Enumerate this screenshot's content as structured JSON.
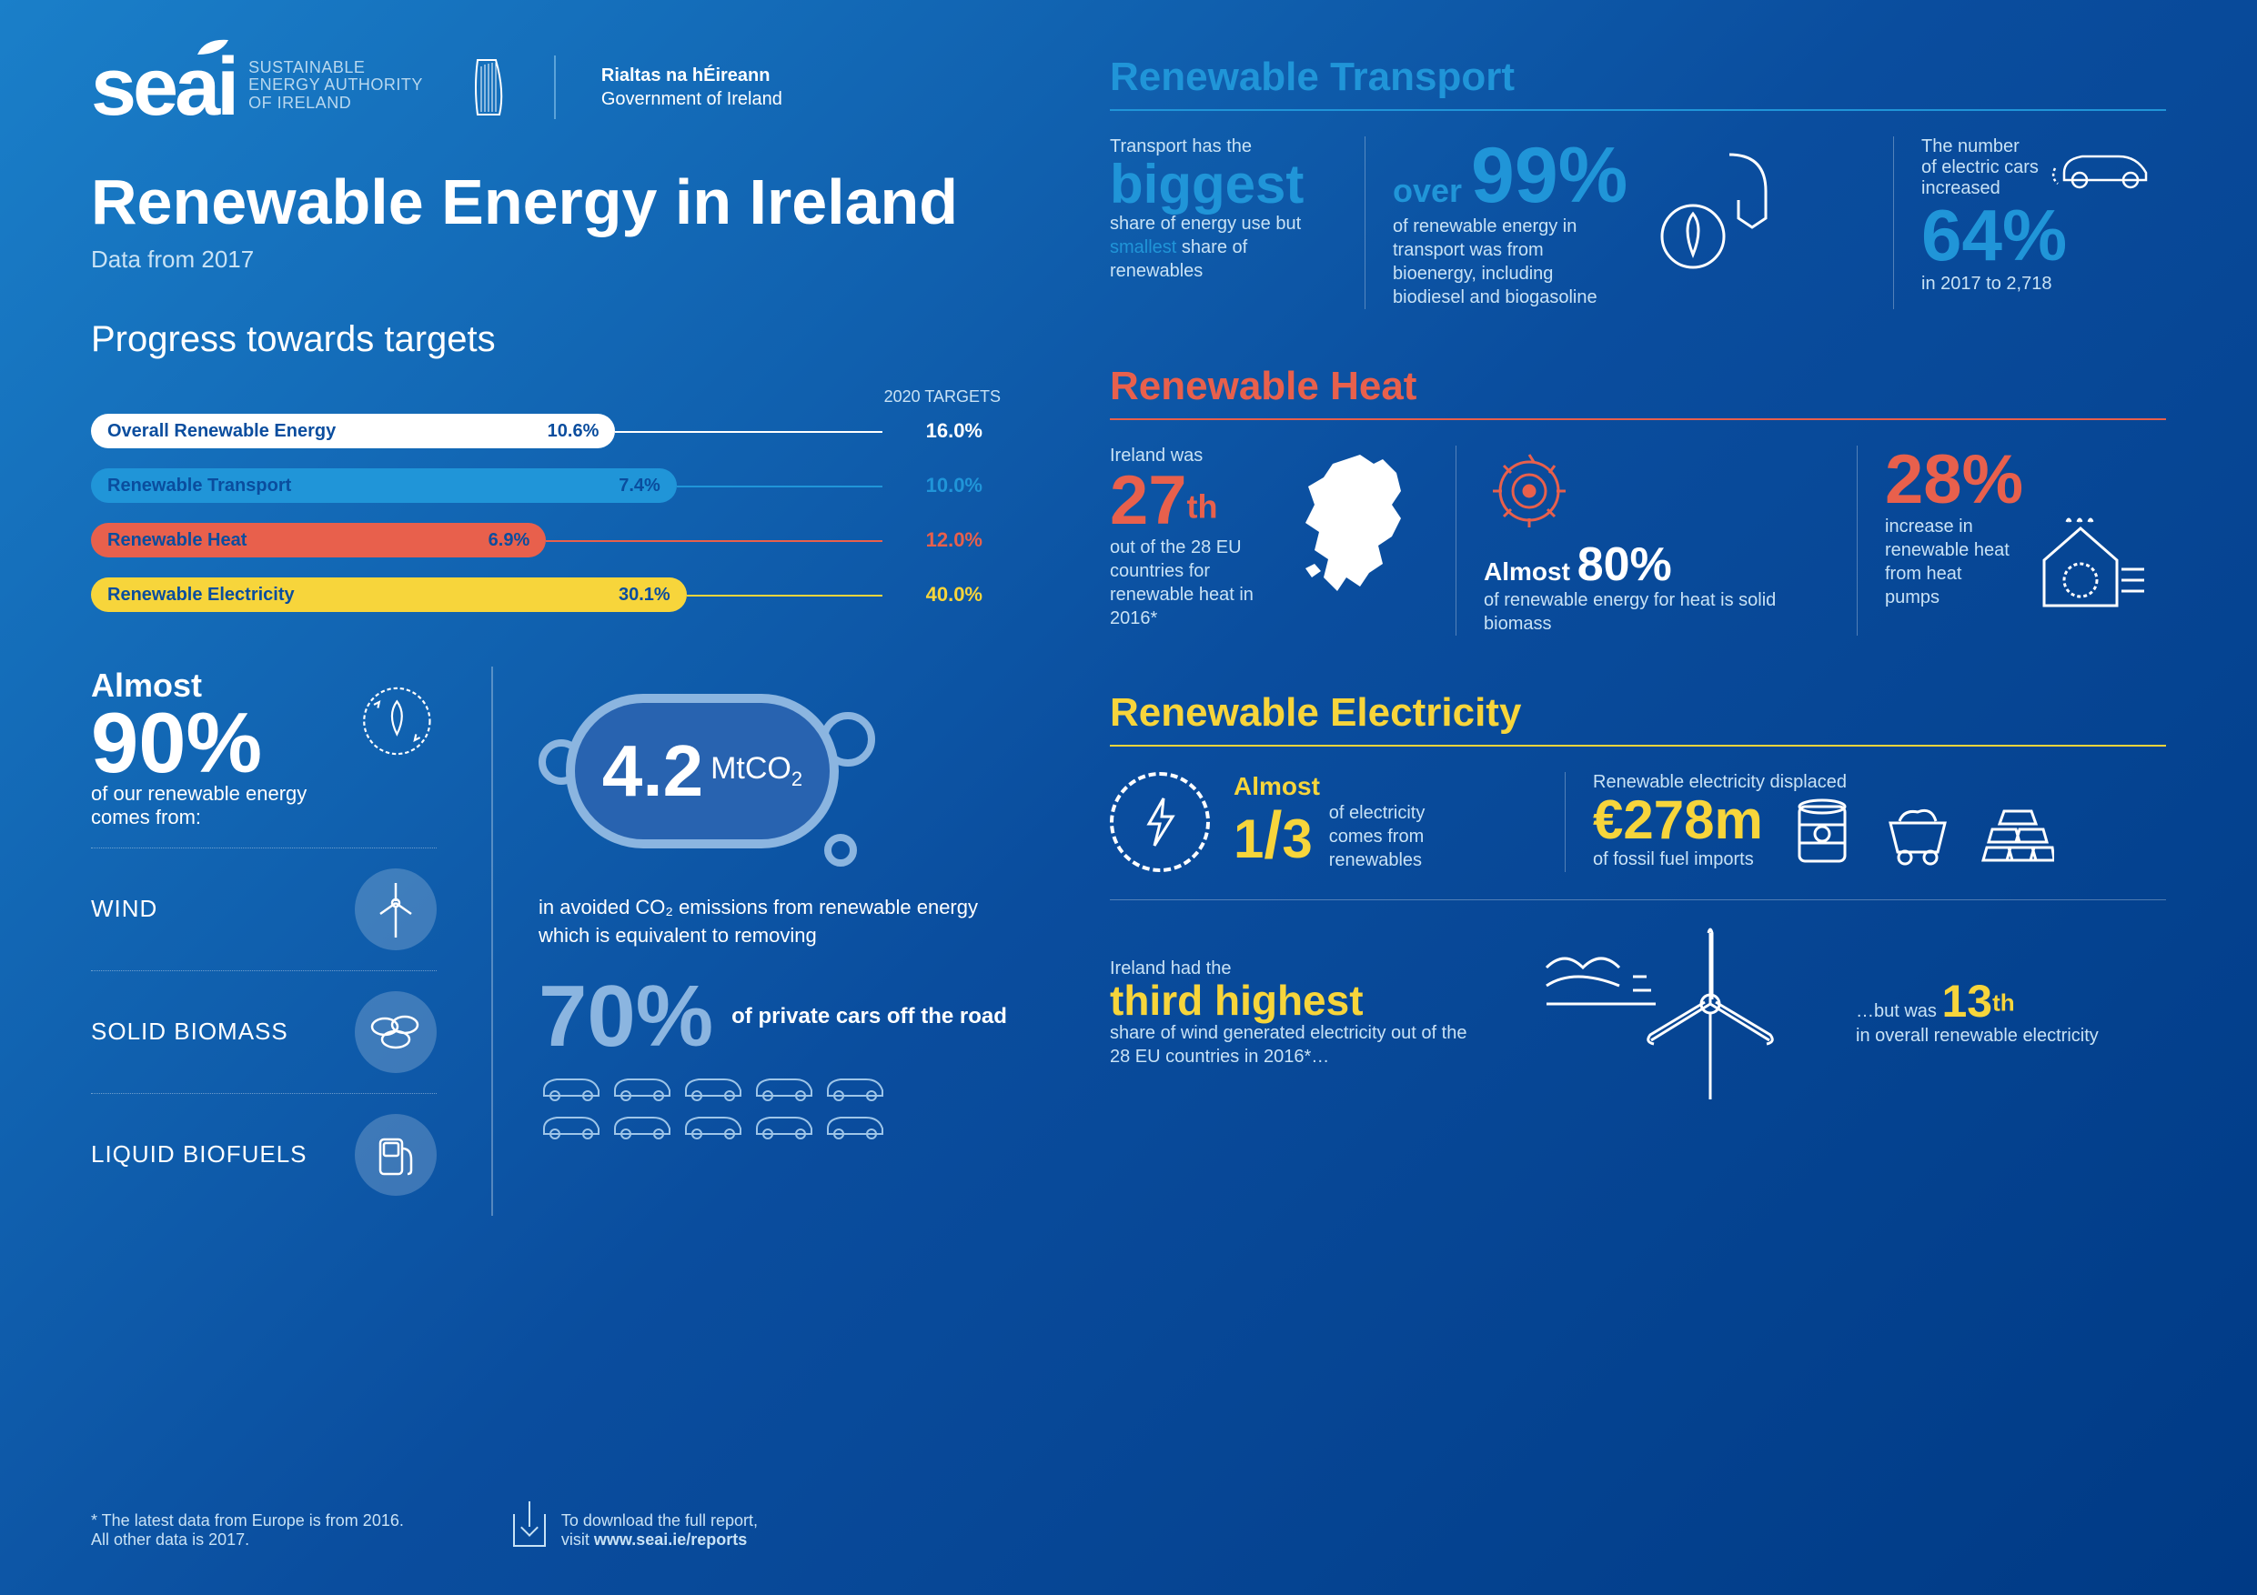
{
  "header": {
    "seai_mark": "seai",
    "seai_sub_l1": "SUSTAINABLE",
    "seai_sub_l2": "ENERGY AUTHORITY",
    "seai_sub_l3": "OF IRELAND",
    "gov_ga": "Rialtas na hÉireann",
    "gov_en": "Government of Ireland"
  },
  "title": "Renewable Energy in Ireland",
  "subtitle": "Data from 2017",
  "progress": {
    "heading": "Progress towards targets",
    "targets_label": "2020 TARGETS",
    "bars": [
      {
        "label": "Overall Renewable Energy",
        "value": "10.6%",
        "pct": 66.25,
        "target": "16.0%",
        "fill": "#ffffff",
        "text": "#0a4d9e",
        "line": "#ffffff"
      },
      {
        "label": "Renewable Transport",
        "value": "7.4%",
        "pct": 74.0,
        "target": "10.0%",
        "fill": "#2095d8",
        "text": "#0a4d9e",
        "line": "#2095d8"
      },
      {
        "label": "Renewable Heat",
        "value": "6.9%",
        "pct": 57.5,
        "target": "12.0%",
        "fill": "#e8604c",
        "text": "#0a4d9e",
        "line": "#e8604c"
      },
      {
        "label": "Renewable Electricity",
        "value": "30.1%",
        "pct": 75.25,
        "target": "40.0%",
        "fill": "#f7d53b",
        "text": "#0a4d9e",
        "line": "#f7d53b"
      }
    ]
  },
  "sources": {
    "almost": "Almost",
    "pct": "90%",
    "desc": "of our renewable energy comes from:",
    "items": [
      "WIND",
      "SOLID BIOMASS",
      "LIQUID BIOFUELS"
    ]
  },
  "co2": {
    "value": "4.2",
    "unit_pre": "MtCO",
    "unit_sub": "2",
    "text": "in avoided CO₂ emissions from renewable energy which is equivalent to removing",
    "pct70": "70%",
    "pct70_desc": "of private cars off the road",
    "car_count": 10
  },
  "rt": {
    "title": "Renewable Transport",
    "c1_lead": "Transport has the",
    "c1_big": "biggest",
    "c1_body1": "share of energy use but ",
    "c1_small": "smallest",
    "c1_body2": " share of renewables",
    "c2_over": "over ",
    "c2_big": "99%",
    "c2_body": "of renewable energy in transport was from bioenergy, including biodiesel and biogasoline",
    "c3_lead": "The number of electric cars increased",
    "c3_big": "64%",
    "c3_body": "in 2017 to 2,718"
  },
  "rh": {
    "title": "Renewable Heat",
    "c1_lead": "Ireland was",
    "c1_big": "27",
    "c1_sup": "th",
    "c1_body": "out of the 28 EU countries for renewable heat in 2016*",
    "c2_almost": "Almost ",
    "c2_big": "80%",
    "c2_body": "of renewable energy for heat is solid biomass",
    "c3_big": "28%",
    "c3_body": "increase in renewable heat from heat pumps"
  },
  "re": {
    "title": "Renewable Electricity",
    "c1_almost": "Almost",
    "c1_frac_top": "1",
    "c1_frac_bot": "3",
    "c1_body": "of electricity comes from renewables",
    "c2_lead": "Renewable electricity displaced",
    "c2_big": "€278m",
    "c2_body": "of fossil fuel imports",
    "b_lead": "Ireland had the",
    "b_big": "third highest",
    "b_body": "share of wind generated electricity out of the 28 EU countries in 2016*…",
    "b2_pre": "…but was ",
    "b2_big": "13",
    "b2_sup": "th",
    "b2_body": "in overall renewable electricity"
  },
  "footer": {
    "note_l1": "* The latest data from Europe is from 2016.",
    "note_l2": "  All other data is 2017.",
    "dl_l1": "To download the full report,",
    "dl_l2": "visit ",
    "dl_url": "www.seai.ie/reports"
  },
  "colors": {
    "blue_bright": "#2095d8",
    "red": "#e8604c",
    "yellow": "#f7d53b",
    "lightblue": "#8bb5e0"
  }
}
